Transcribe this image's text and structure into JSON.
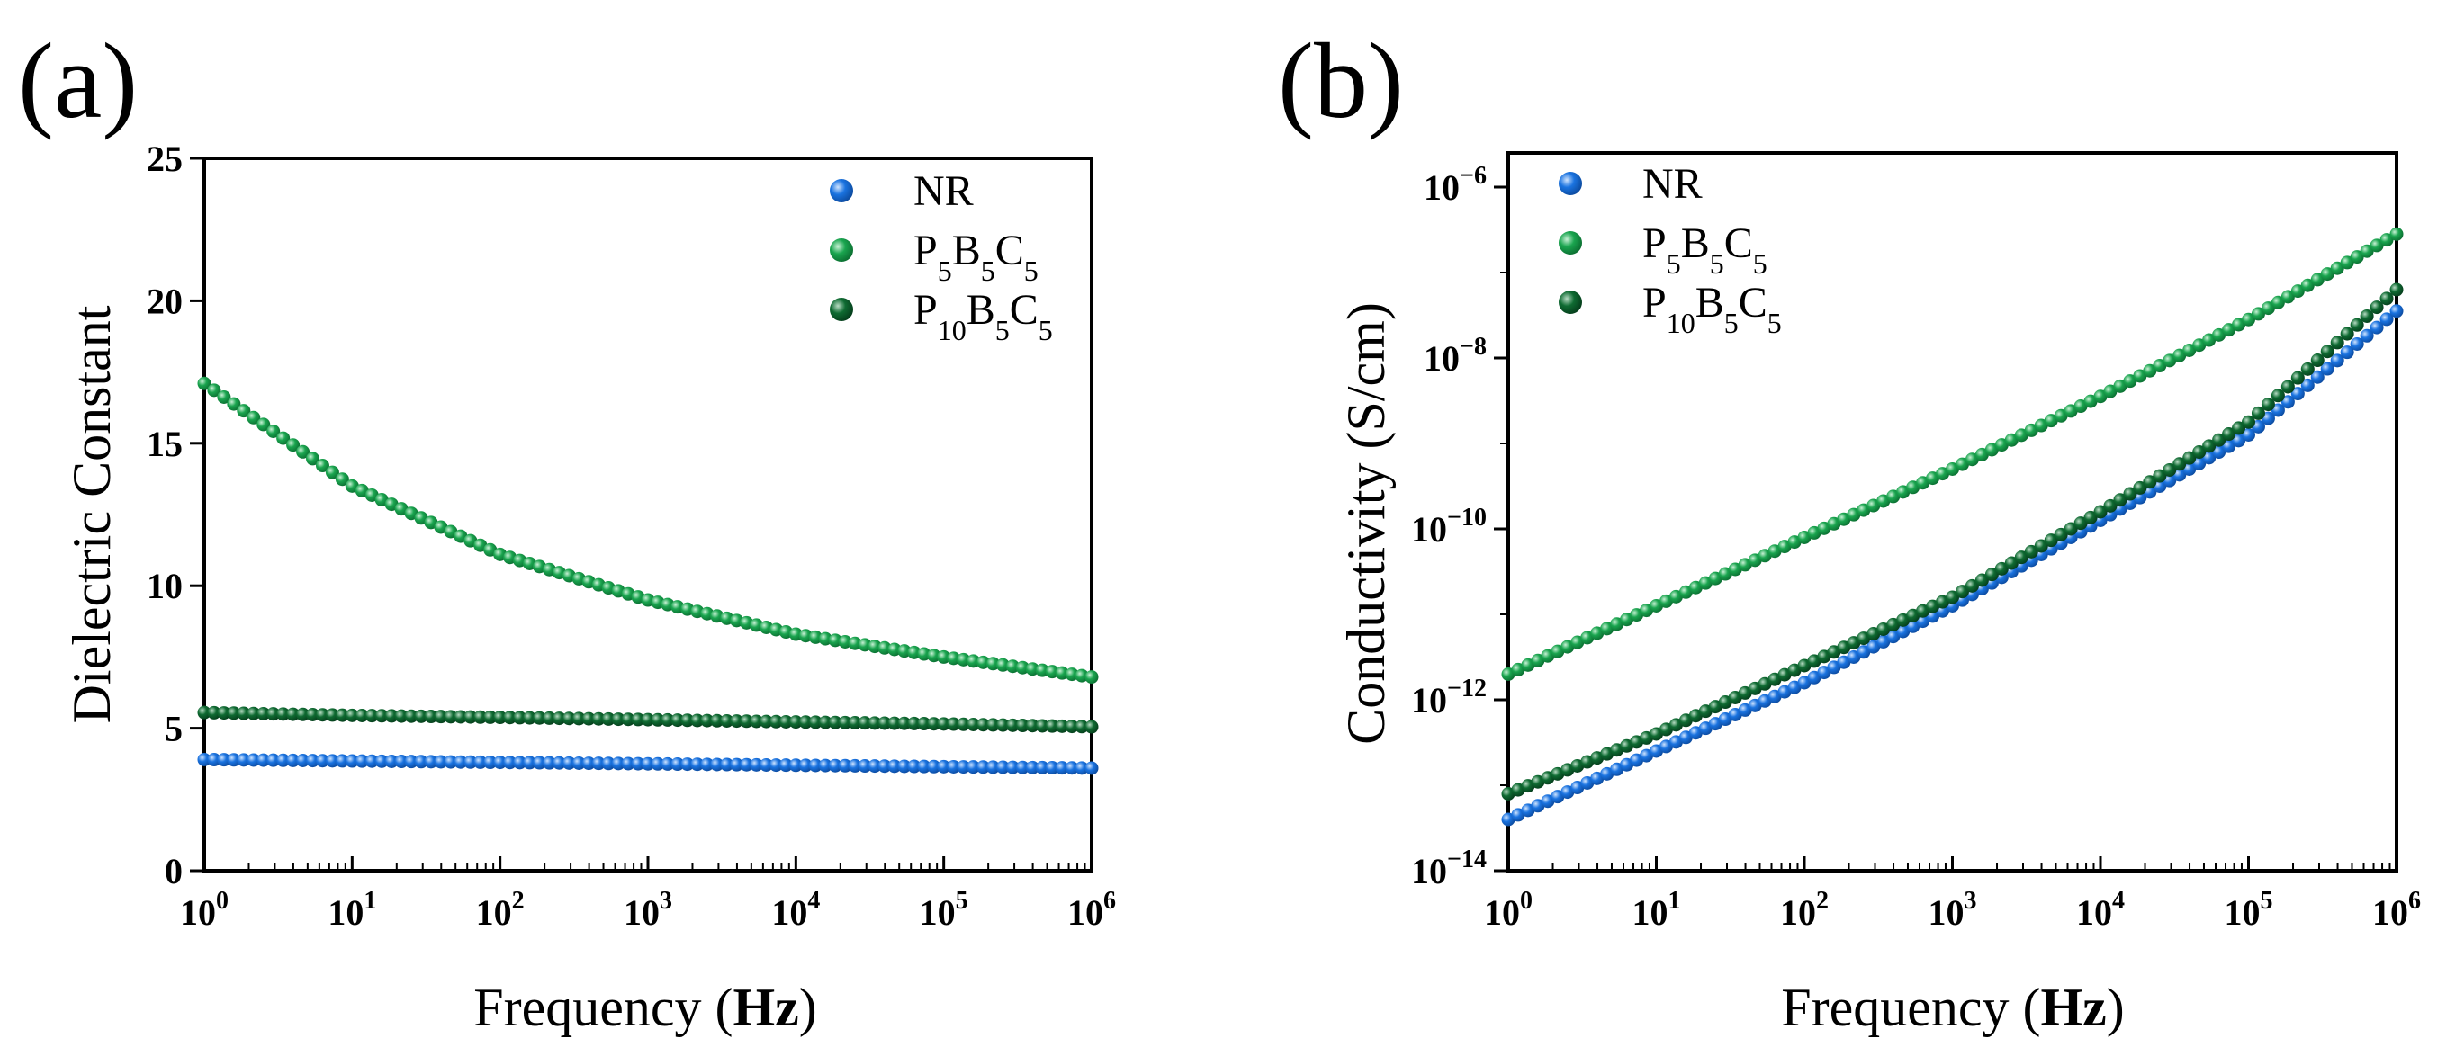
{
  "colors": {
    "NR": "#1a73e0",
    "P5B5C5": "#1aa54f",
    "P10B5C5": "#0f6b32"
  },
  "chart_data": [
    {
      "panel_label": "(a)",
      "type": "scatter",
      "xscale": "log",
      "xlabel": "Frequency",
      "xlabel_unit": "Hz",
      "ylabel": "Dielectric Constant",
      "xlim": [
        1,
        1000000
      ],
      "ylim": [
        0,
        25
      ],
      "xticks": [
        {
          "v": 1,
          "base": "10",
          "exp": "0"
        },
        {
          "v": 10,
          "base": "10",
          "exp": "1"
        },
        {
          "v": 100,
          "base": "10",
          "exp": "2"
        },
        {
          "v": 1000,
          "base": "10",
          "exp": "3"
        },
        {
          "v": 10000,
          "base": "10",
          "exp": "4"
        },
        {
          "v": 100000,
          "base": "10",
          "exp": "5"
        },
        {
          "v": 1000000,
          "base": "10",
          "exp": "6"
        }
      ],
      "yticks": [
        {
          "v": 0,
          "label": "0"
        },
        {
          "v": 5,
          "label": "5"
        },
        {
          "v": 10,
          "label": "10"
        },
        {
          "v": 15,
          "label": "15"
        },
        {
          "v": 20,
          "label": "20"
        },
        {
          "v": 25,
          "label": "25"
        }
      ],
      "legend_position": "top-right",
      "series": [
        {
          "name": "NR",
          "key": "NR",
          "label_parts": [
            [
              "NR",
              ""
            ]
          ],
          "x": [
            1,
            10,
            100,
            1000,
            10000,
            100000,
            1000000
          ],
          "y": [
            3.9,
            3.85,
            3.8,
            3.75,
            3.7,
            3.65,
            3.6
          ]
        },
        {
          "name": "P5B5C5",
          "key": "P5B5C5",
          "label_parts": [
            [
              "P",
              "5"
            ],
            [
              "B",
              "5"
            ],
            [
              "C",
              "5"
            ]
          ],
          "x": [
            1,
            10,
            100,
            1000,
            10000,
            100000,
            1000000
          ],
          "y": [
            17.1,
            13.5,
            11.1,
            9.5,
            8.3,
            7.5,
            6.8
          ]
        },
        {
          "name": "P10B5C5",
          "key": "P10B5C5",
          "label_parts": [
            [
              "P",
              "10"
            ],
            [
              "B",
              "5"
            ],
            [
              "C",
              "5"
            ]
          ],
          "x": [
            1,
            10,
            100,
            1000,
            10000,
            100000,
            1000000
          ],
          "y": [
            5.55,
            5.45,
            5.38,
            5.3,
            5.22,
            5.15,
            5.05
          ]
        }
      ]
    },
    {
      "panel_label": "(b)",
      "type": "scatter",
      "xscale": "log",
      "yscale": "log",
      "xlabel": "Frequency",
      "xlabel_unit": "Hz",
      "ylabel": "Conductivity (S/cm)",
      "xlim": [
        1,
        1000000
      ],
      "ylim_log10": [
        -14,
        -5.6
      ],
      "xticks": [
        {
          "v": 1,
          "base": "10",
          "exp": "0"
        },
        {
          "v": 10,
          "base": "10",
          "exp": "1"
        },
        {
          "v": 100,
          "base": "10",
          "exp": "2"
        },
        {
          "v": 1000,
          "base": "10",
          "exp": "3"
        },
        {
          "v": 10000,
          "base": "10",
          "exp": "4"
        },
        {
          "v": 100000,
          "base": "10",
          "exp": "5"
        },
        {
          "v": 1000000,
          "base": "10",
          "exp": "6"
        }
      ],
      "yticks": [
        {
          "v": -14,
          "base": "10",
          "exp": "−14"
        },
        {
          "v": -12,
          "base": "10",
          "exp": "−12"
        },
        {
          "v": -10,
          "base": "10",
          "exp": "−10"
        },
        {
          "v": -8,
          "base": "10",
          "exp": "−8"
        },
        {
          "v": -6,
          "base": "10",
          "exp": "−6"
        }
      ],
      "legend_position": "top-left",
      "series": [
        {
          "name": "NR",
          "key": "NR",
          "label_parts": [
            [
              "NR",
              ""
            ]
          ],
          "x": [
            1,
            10,
            100,
            1000,
            10000,
            100000,
            1000000
          ],
          "log10_y": [
            -13.4,
            -12.6,
            -11.8,
            -10.9,
            -9.9,
            -8.9,
            -7.45
          ]
        },
        {
          "name": "P5B5C5",
          "key": "P5B5C5",
          "label_parts": [
            [
              "P",
              "5"
            ],
            [
              "B",
              "5"
            ],
            [
              "C",
              "5"
            ]
          ],
          "x": [
            1,
            10,
            100,
            1000,
            10000,
            100000,
            1000000
          ],
          "log10_y": [
            -11.7,
            -10.9,
            -10.1,
            -9.3,
            -8.45,
            -7.55,
            -6.55
          ]
        },
        {
          "name": "P10B5C5",
          "key": "P10B5C5",
          "label_parts": [
            [
              "P",
              "10"
            ],
            [
              "B",
              "5"
            ],
            [
              "C",
              "5"
            ]
          ],
          "x": [
            1,
            10,
            100,
            1000,
            10000,
            100000,
            1000000
          ],
          "log10_y": [
            -13.1,
            -12.4,
            -11.6,
            -10.8,
            -9.8,
            -8.75,
            -7.2
          ]
        }
      ]
    }
  ]
}
